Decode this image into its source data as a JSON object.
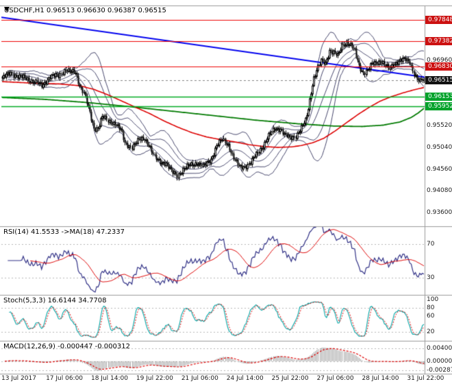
{
  "header": {
    "title": "USDCHF,H1 0.96513 0.96630 0.96387 0.96515"
  },
  "panels": {
    "rsi_label": "RSI(14) 41.5533 ->MA(18) 47.2337",
    "stoch_label": "Stoch(5,3,3) 16.6144 34.7708",
    "macd_label": "MACD(12,26,9) -0.000447 -0.000312"
  },
  "colors": {
    "background": "#ffffff",
    "border": "#9a9a9a",
    "grid": "#b5b5b5",
    "candle_up": "#ffffff",
    "candle_down": "#000000",
    "wick": "#000000",
    "bands": "#44446a",
    "ma_fast_red": "#dd0000",
    "ma_slow_green": "#007a00",
    "trendline": "#0000ee",
    "resistance": "#ee0000",
    "support": "#00aa22",
    "bid_line": "#808080",
    "rsi_line": "#2f2f85",
    "rsi_ma": "#dd0000",
    "stoch_k": "#00a5a5",
    "stoch_d": "#dd0000",
    "macd_hist": "#a0a0a0",
    "macd_signal": "#dd0000",
    "badge_red": "#cc1111",
    "badge_black": "#111111",
    "badge_green": "#00a22a"
  },
  "price_axis": {
    "plain": [
      {
        "text": "0.96960",
        "price": 0.9696
      },
      {
        "text": "0.95520",
        "price": 0.9552
      },
      {
        "text": "0.95040",
        "price": 0.9504
      },
      {
        "text": "0.94560",
        "price": 0.9456
      },
      {
        "text": "0.94080",
        "price": 0.9408
      },
      {
        "text": "0.93600",
        "price": 0.936
      }
    ],
    "badges": [
      {
        "text": "0.97848",
        "price": 0.97848,
        "bg": "#cc1111"
      },
      {
        "text": "0.97382",
        "price": 0.97382,
        "bg": "#cc1111"
      },
      {
        "text": "0.96830",
        "price": 0.9683,
        "bg": "#cc1111"
      },
      {
        "text": "0.96515",
        "price": 0.96515,
        "bg": "#111111"
      },
      {
        "text": "0.96153",
        "price": 0.96153,
        "bg": "#00a22a"
      },
      {
        "text": "0.95952",
        "price": 0.95952,
        "bg": "#00a22a"
      }
    ]
  },
  "time_axis": {
    "labels": [
      {
        "text": "13 Jul 2017",
        "bar": 2
      },
      {
        "text": "17 Jul 06:00",
        "bar": 34
      },
      {
        "text": "18 Jul 14:00",
        "bar": 66
      },
      {
        "text": "19 Jul 22:00",
        "bar": 98
      },
      {
        "text": "21 Jul 06:00",
        "bar": 130
      },
      {
        "text": "24 Jul 14:00",
        "bar": 162
      },
      {
        "text": "25 Jul 22:00",
        "bar": 194
      },
      {
        "text": "27 Jul 06:00",
        "bar": 226
      },
      {
        "text": "28 Jul 14:00",
        "bar": 258
      },
      {
        "text": "31 Jul 22:00",
        "bar": 290
      }
    ]
  },
  "chart_data": [
    {
      "type": "candlestick",
      "title": "USDCHF H1",
      "ohlc_display": {
        "open": 0.96513,
        "high": 0.9663,
        "low": 0.96387,
        "close": 0.96515
      },
      "bars": 300,
      "ylim": [
        0.93299,
        0.9817
      ],
      "close_anchors": [
        [
          0,
          0.9656
        ],
        [
          6,
          0.9668
        ],
        [
          12,
          0.966
        ],
        [
          18,
          0.9654
        ],
        [
          24,
          0.9648
        ],
        [
          28,
          0.9638
        ],
        [
          34,
          0.9662
        ],
        [
          40,
          0.966
        ],
        [
          45,
          0.9678
        ],
        [
          48,
          0.967
        ],
        [
          52,
          0.9668
        ],
        [
          55,
          0.964
        ],
        [
          58,
          0.9625
        ],
        [
          61,
          0.959
        ],
        [
          63,
          0.9565
        ],
        [
          65,
          0.9545
        ],
        [
          68,
          0.9548
        ],
        [
          71,
          0.9572
        ],
        [
          75,
          0.956
        ],
        [
          80,
          0.9558
        ],
        [
          84,
          0.9542
        ],
        [
          87,
          0.9512
        ],
        [
          92,
          0.9506
        ],
        [
          97,
          0.952
        ],
        [
          101,
          0.9524
        ],
        [
          104,
          0.951
        ],
        [
          108,
          0.948
        ],
        [
          112,
          0.9472
        ],
        [
          116,
          0.947
        ],
        [
          120,
          0.945
        ],
        [
          124,
          0.9442
        ],
        [
          128,
          0.9455
        ],
        [
          133,
          0.9464
        ],
        [
          138,
          0.947
        ],
        [
          143,
          0.9462
        ],
        [
          148,
          0.9478
        ],
        [
          152,
          0.9508
        ],
        [
          156,
          0.952
        ],
        [
          160,
          0.951
        ],
        [
          164,
          0.948
        ],
        [
          168,
          0.946
        ],
        [
          172,
          0.9462
        ],
        [
          176,
          0.947
        ],
        [
          180,
          0.9488
        ],
        [
          185,
          0.9508
        ],
        [
          189,
          0.9528
        ],
        [
          193,
          0.9545
        ],
        [
          197,
          0.9546
        ],
        [
          200,
          0.9532
        ],
        [
          204,
          0.9524
        ],
        [
          208,
          0.953
        ],
        [
          212,
          0.9546
        ],
        [
          215,
          0.9562
        ],
        [
          217,
          0.959
        ],
        [
          219,
          0.9628
        ],
        [
          221,
          0.9658
        ],
        [
          223,
          0.9672
        ],
        [
          226,
          0.9695
        ],
        [
          229,
          0.969
        ],
        [
          232,
          0.9718
        ],
        [
          235,
          0.9712
        ],
        [
          238,
          0.9705
        ],
        [
          241,
          0.973
        ],
        [
          244,
          0.9736
        ],
        [
          247,
          0.9728
        ],
        [
          250,
          0.9716
        ],
        [
          253,
          0.9685
        ],
        [
          256,
          0.9668
        ],
        [
          259,
          0.9672
        ],
        [
          262,
          0.9688
        ],
        [
          265,
          0.9692
        ],
        [
          268,
          0.9694
        ],
        [
          271,
          0.9685
        ],
        [
          274,
          0.9678
        ],
        [
          277,
          0.9688
        ],
        [
          280,
          0.9692
        ],
        [
          283,
          0.9695
        ],
        [
          286,
          0.9698
        ],
        [
          289,
          0.9694
        ],
        [
          292,
          0.9665
        ],
        [
          294,
          0.9652
        ],
        [
          296,
          0.9648
        ],
        [
          298,
          0.9655
        ],
        [
          299,
          0.96515
        ]
      ],
      "noise": {
        "amp1": 0.00045,
        "freq1": 2.17,
        "amp2": 0.0003,
        "freq2": 0.537,
        "wick": 0.0004
      },
      "bollinger": {
        "period": 20,
        "deviations": [
          1,
          2
        ]
      },
      "ma_red_anchors": [
        [
          0,
          0.9649
        ],
        [
          20,
          0.9646
        ],
        [
          40,
          0.9644
        ],
        [
          55,
          0.964
        ],
        [
          65,
          0.9632
        ],
        [
          75,
          0.962
        ],
        [
          85,
          0.9606
        ],
        [
          95,
          0.9592
        ],
        [
          105,
          0.9578
        ],
        [
          115,
          0.9562
        ],
        [
          125,
          0.9548
        ],
        [
          135,
          0.9536
        ],
        [
          145,
          0.9527
        ],
        [
          155,
          0.9521
        ],
        [
          165,
          0.9516
        ],
        [
          175,
          0.951
        ],
        [
          185,
          0.9506
        ],
        [
          195,
          0.9504
        ],
        [
          205,
          0.9505
        ],
        [
          212,
          0.9508
        ],
        [
          220,
          0.9514
        ],
        [
          228,
          0.9524
        ],
        [
          236,
          0.954
        ],
        [
          244,
          0.9558
        ],
        [
          252,
          0.9576
        ],
        [
          260,
          0.9592
        ],
        [
          268,
          0.9606
        ],
        [
          276,
          0.9616
        ],
        [
          284,
          0.9624
        ],
        [
          292,
          0.9631
        ],
        [
          299,
          0.9636
        ]
      ],
      "ma_green_anchors": [
        [
          0,
          0.9614
        ],
        [
          30,
          0.961
        ],
        [
          60,
          0.9603
        ],
        [
          90,
          0.9594
        ],
        [
          120,
          0.9584
        ],
        [
          150,
          0.9574
        ],
        [
          180,
          0.9564
        ],
        [
          210,
          0.9556
        ],
        [
          235,
          0.9551
        ],
        [
          255,
          0.955
        ],
        [
          270,
          0.9553
        ],
        [
          282,
          0.956
        ],
        [
          290,
          0.957
        ],
        [
          295,
          0.958
        ],
        [
          299,
          0.959
        ]
      ],
      "trendline": {
        "from_bar": 0,
        "from_price": 0.9791,
        "to_bar": 299,
        "to_price": 0.9659
      },
      "hlines": {
        "resistance": [
          0.97848,
          0.97382,
          0.9683
        ],
        "support": [
          0.96153,
          0.95952
        ],
        "bid": 0.96515
      }
    },
    {
      "type": "line",
      "name": "RSI",
      "period": 14,
      "value": 41.5533,
      "ma_period": 18,
      "ma_value": 47.2337,
      "ylim": [
        10,
        90
      ],
      "levels": [
        70,
        30
      ],
      "axis_labels": [
        {
          "text": "70",
          "value": 70
        },
        {
          "text": "30",
          "value": 30
        }
      ]
    },
    {
      "type": "line",
      "name": "Stochastic",
      "params": [
        5,
        3,
        3
      ],
      "k_value": 16.6144,
      "d_value": 34.7708,
      "ylim": [
        0,
        110
      ],
      "levels": [
        80,
        20
      ],
      "axis_labels": [
        {
          "text": "100",
          "value": 100
        },
        {
          "text": "80",
          "value": 80
        },
        {
          "text": "60",
          "value": 60
        },
        {
          "text": "20",
          "value": 20
        }
      ]
    },
    {
      "type": "histogram",
      "name": "MACD",
      "params": [
        12,
        26,
        9
      ],
      "macd_value": -0.000447,
      "signal_value": -0.000312,
      "ylim": [
        -0.0037,
        0.0062
      ],
      "levels": [
        0.004,
        0,
        -0.00287
      ],
      "axis_labels": [
        {
          "text": "0.00400",
          "value": 0.004
        },
        {
          "text": "0.00000",
          "value": 0
        },
        {
          "text": "-0.00287",
          "value": -0.00287
        }
      ]
    }
  ]
}
